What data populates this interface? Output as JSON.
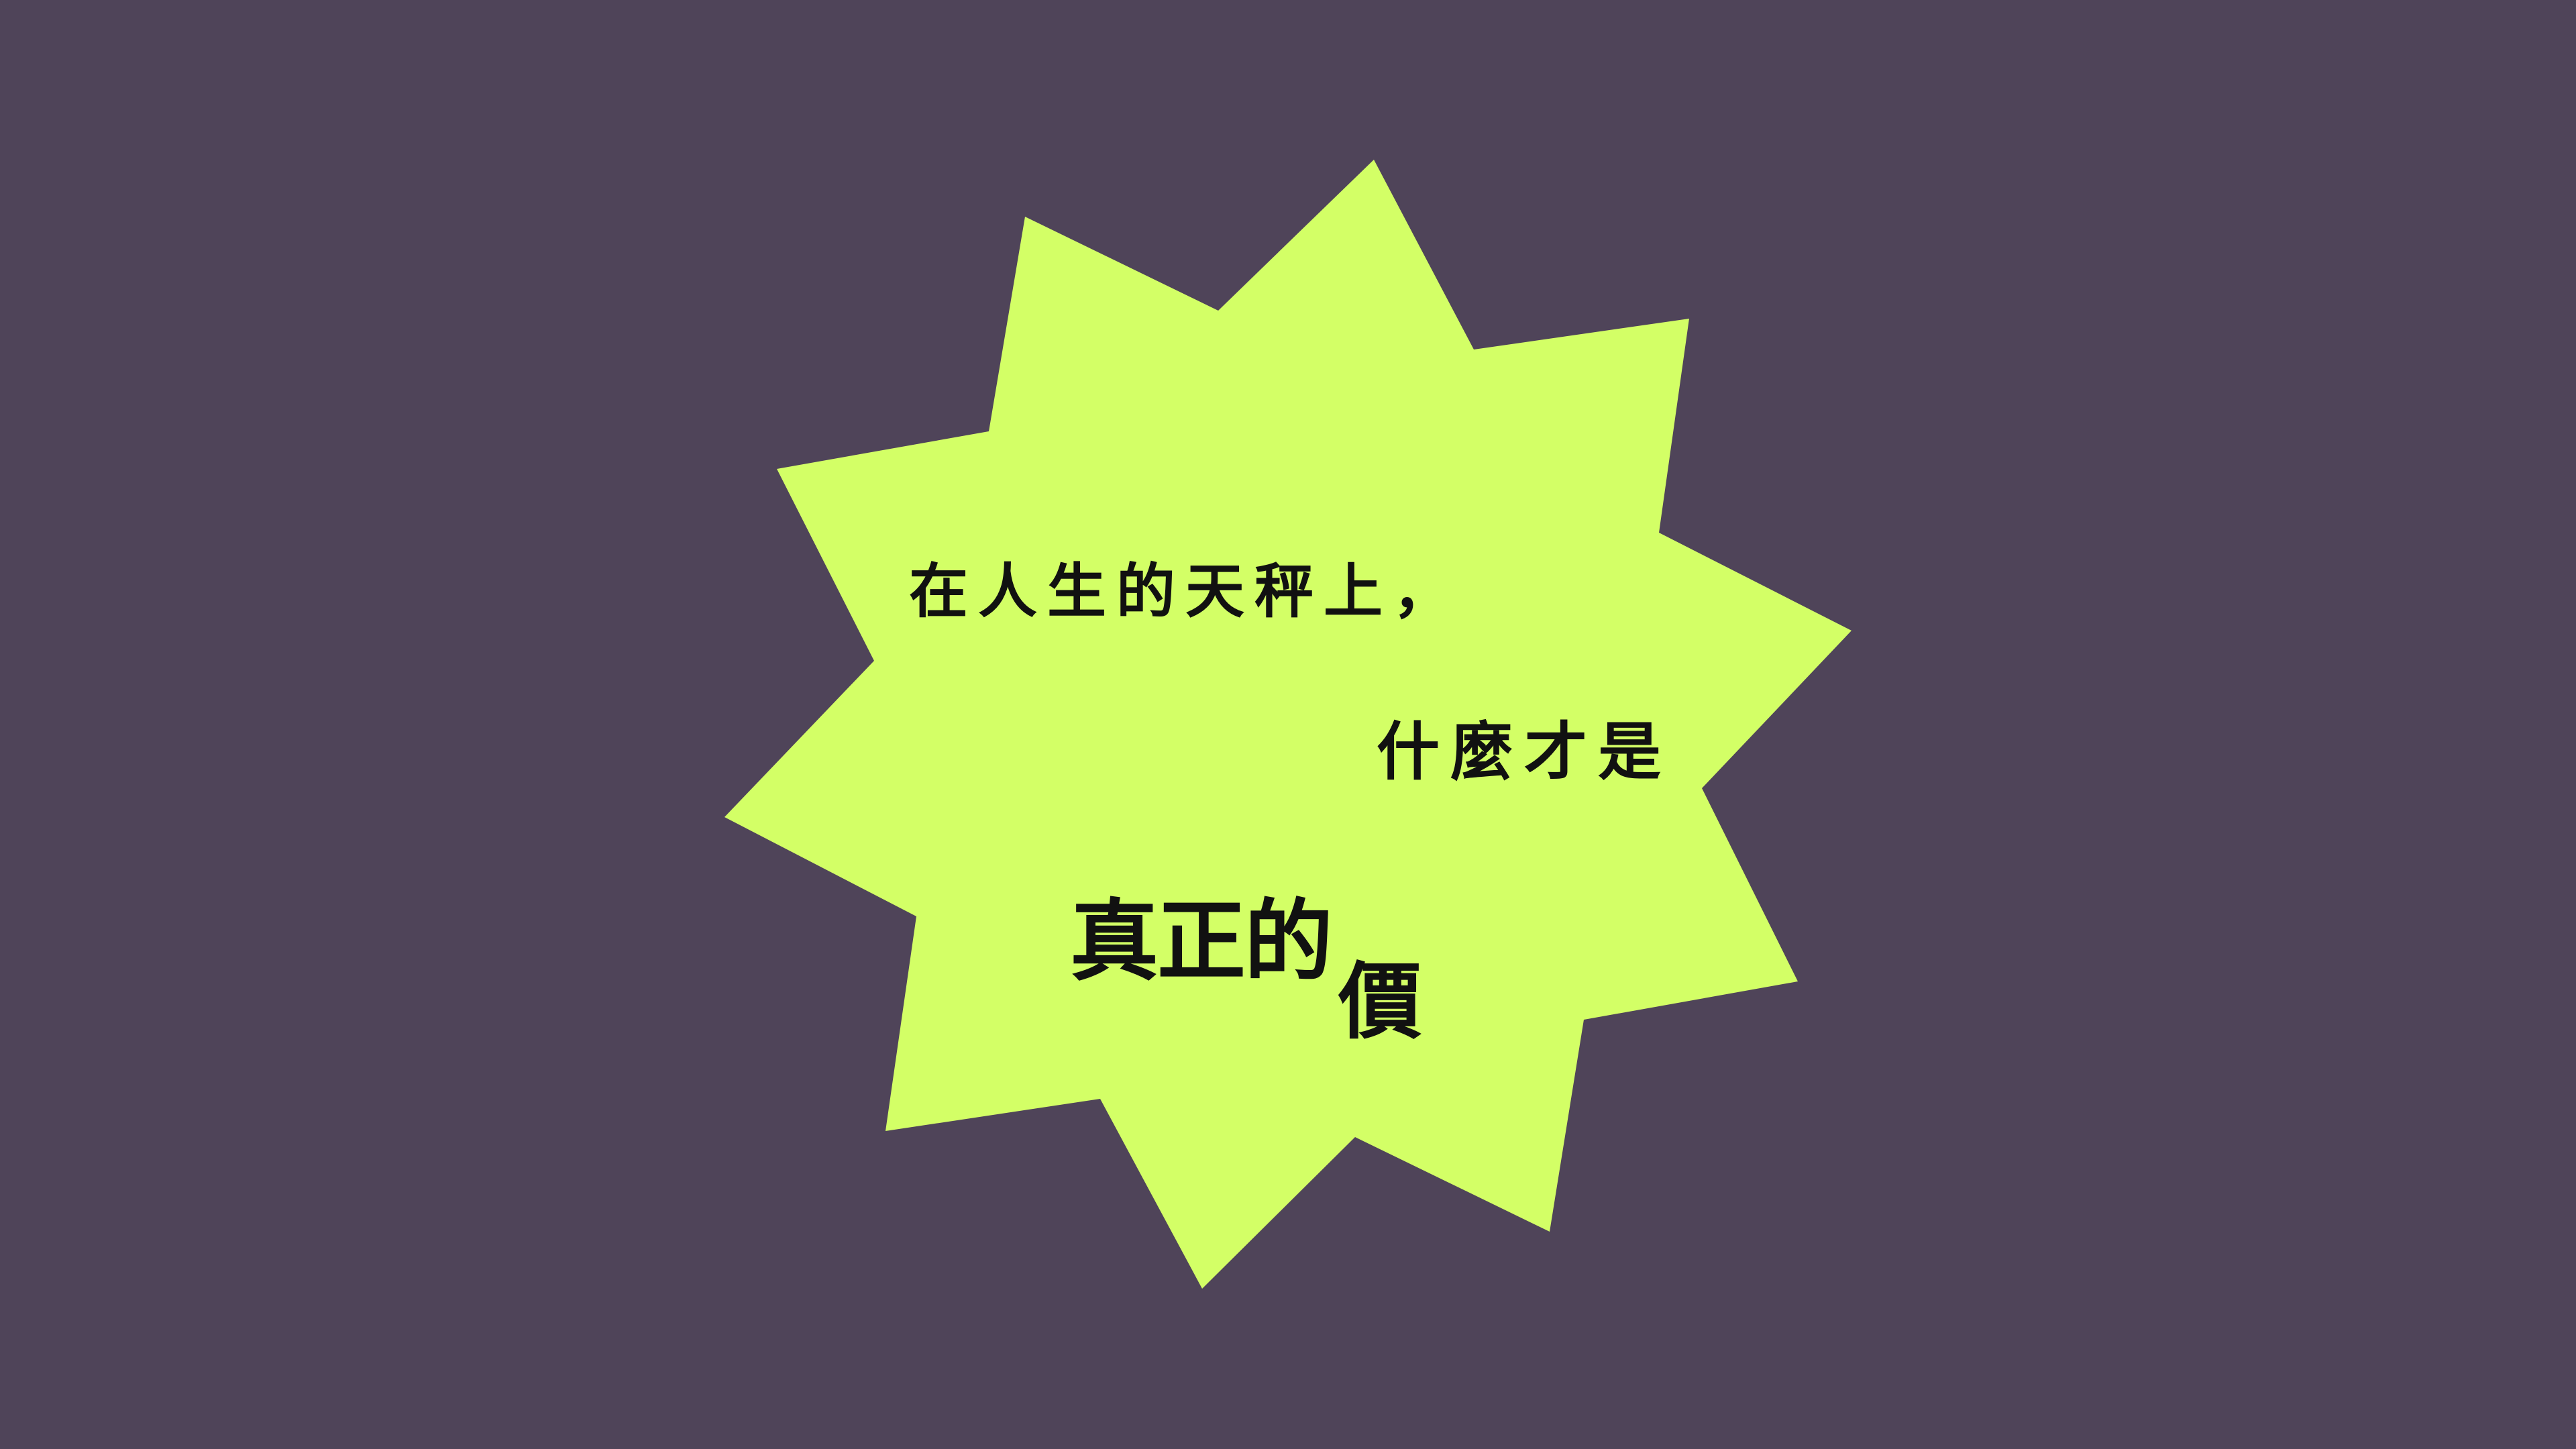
{
  "slide": {
    "background_color": "#4f4459",
    "shape": {
      "type": "ten-point-star",
      "fill_color": "#d3ff66"
    },
    "text_color": "#111111",
    "lines": [
      "在人生的天秤上，",
      "什麼才是",
      "真正的",
      "價"
    ]
  }
}
